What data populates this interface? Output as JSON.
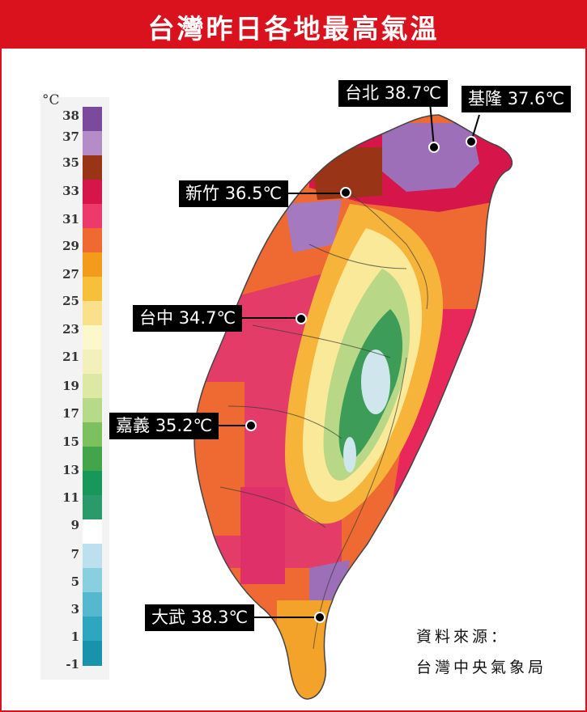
{
  "title": "台灣昨日各地最高氣溫",
  "legend": {
    "unit": "°C",
    "ticks": [
      "38",
      "37",
      "35",
      "33",
      "31",
      "29",
      "27",
      "25",
      "23",
      "21",
      "19",
      "17",
      "15",
      "13",
      "11",
      "9",
      "7",
      "5",
      "3",
      "1",
      "-1"
    ],
    "bands": [
      {
        "color": "#7c4a9c"
      },
      {
        "color": "#b48cc8"
      },
      {
        "color": "#9a3416"
      },
      {
        "color": "#d6164a"
      },
      {
        "color": "#ec3a6c"
      },
      {
        "color": "#ee6a32"
      },
      {
        "color": "#f39c1c"
      },
      {
        "color": "#f6c03a"
      },
      {
        "color": "#fbe08c"
      },
      {
        "color": "#fdf7cc"
      },
      {
        "color": "#f4f0bc"
      },
      {
        "color": "#dde8a4"
      },
      {
        "color": "#b6d98a"
      },
      {
        "color": "#7cc060"
      },
      {
        "color": "#44a44c"
      },
      {
        "color": "#17985a"
      },
      {
        "color": "#2a9a6a"
      },
      {
        "color": "#ffffff"
      },
      {
        "color": "#bce0ee"
      },
      {
        "color": "#8acfe0"
      },
      {
        "color": "#56b8cf"
      },
      {
        "color": "#2ea6c0"
      },
      {
        "color": "#1992ac"
      }
    ]
  },
  "stations": [
    {
      "name": "台北",
      "temp": "38.7℃"
    },
    {
      "name": "基隆",
      "temp": "37.6℃"
    },
    {
      "name": "新竹",
      "temp": "36.5℃"
    },
    {
      "name": "台中",
      "temp": "34.7℃"
    },
    {
      "name": "嘉義",
      "temp": "35.2℃"
    },
    {
      "name": "大武",
      "temp": "38.3℃"
    }
  ],
  "source": {
    "line1": "資料來源：",
    "line2": "台灣中央氣象局"
  },
  "colors": {
    "brand_red": "#d9121e",
    "label_bg": "#000000"
  }
}
